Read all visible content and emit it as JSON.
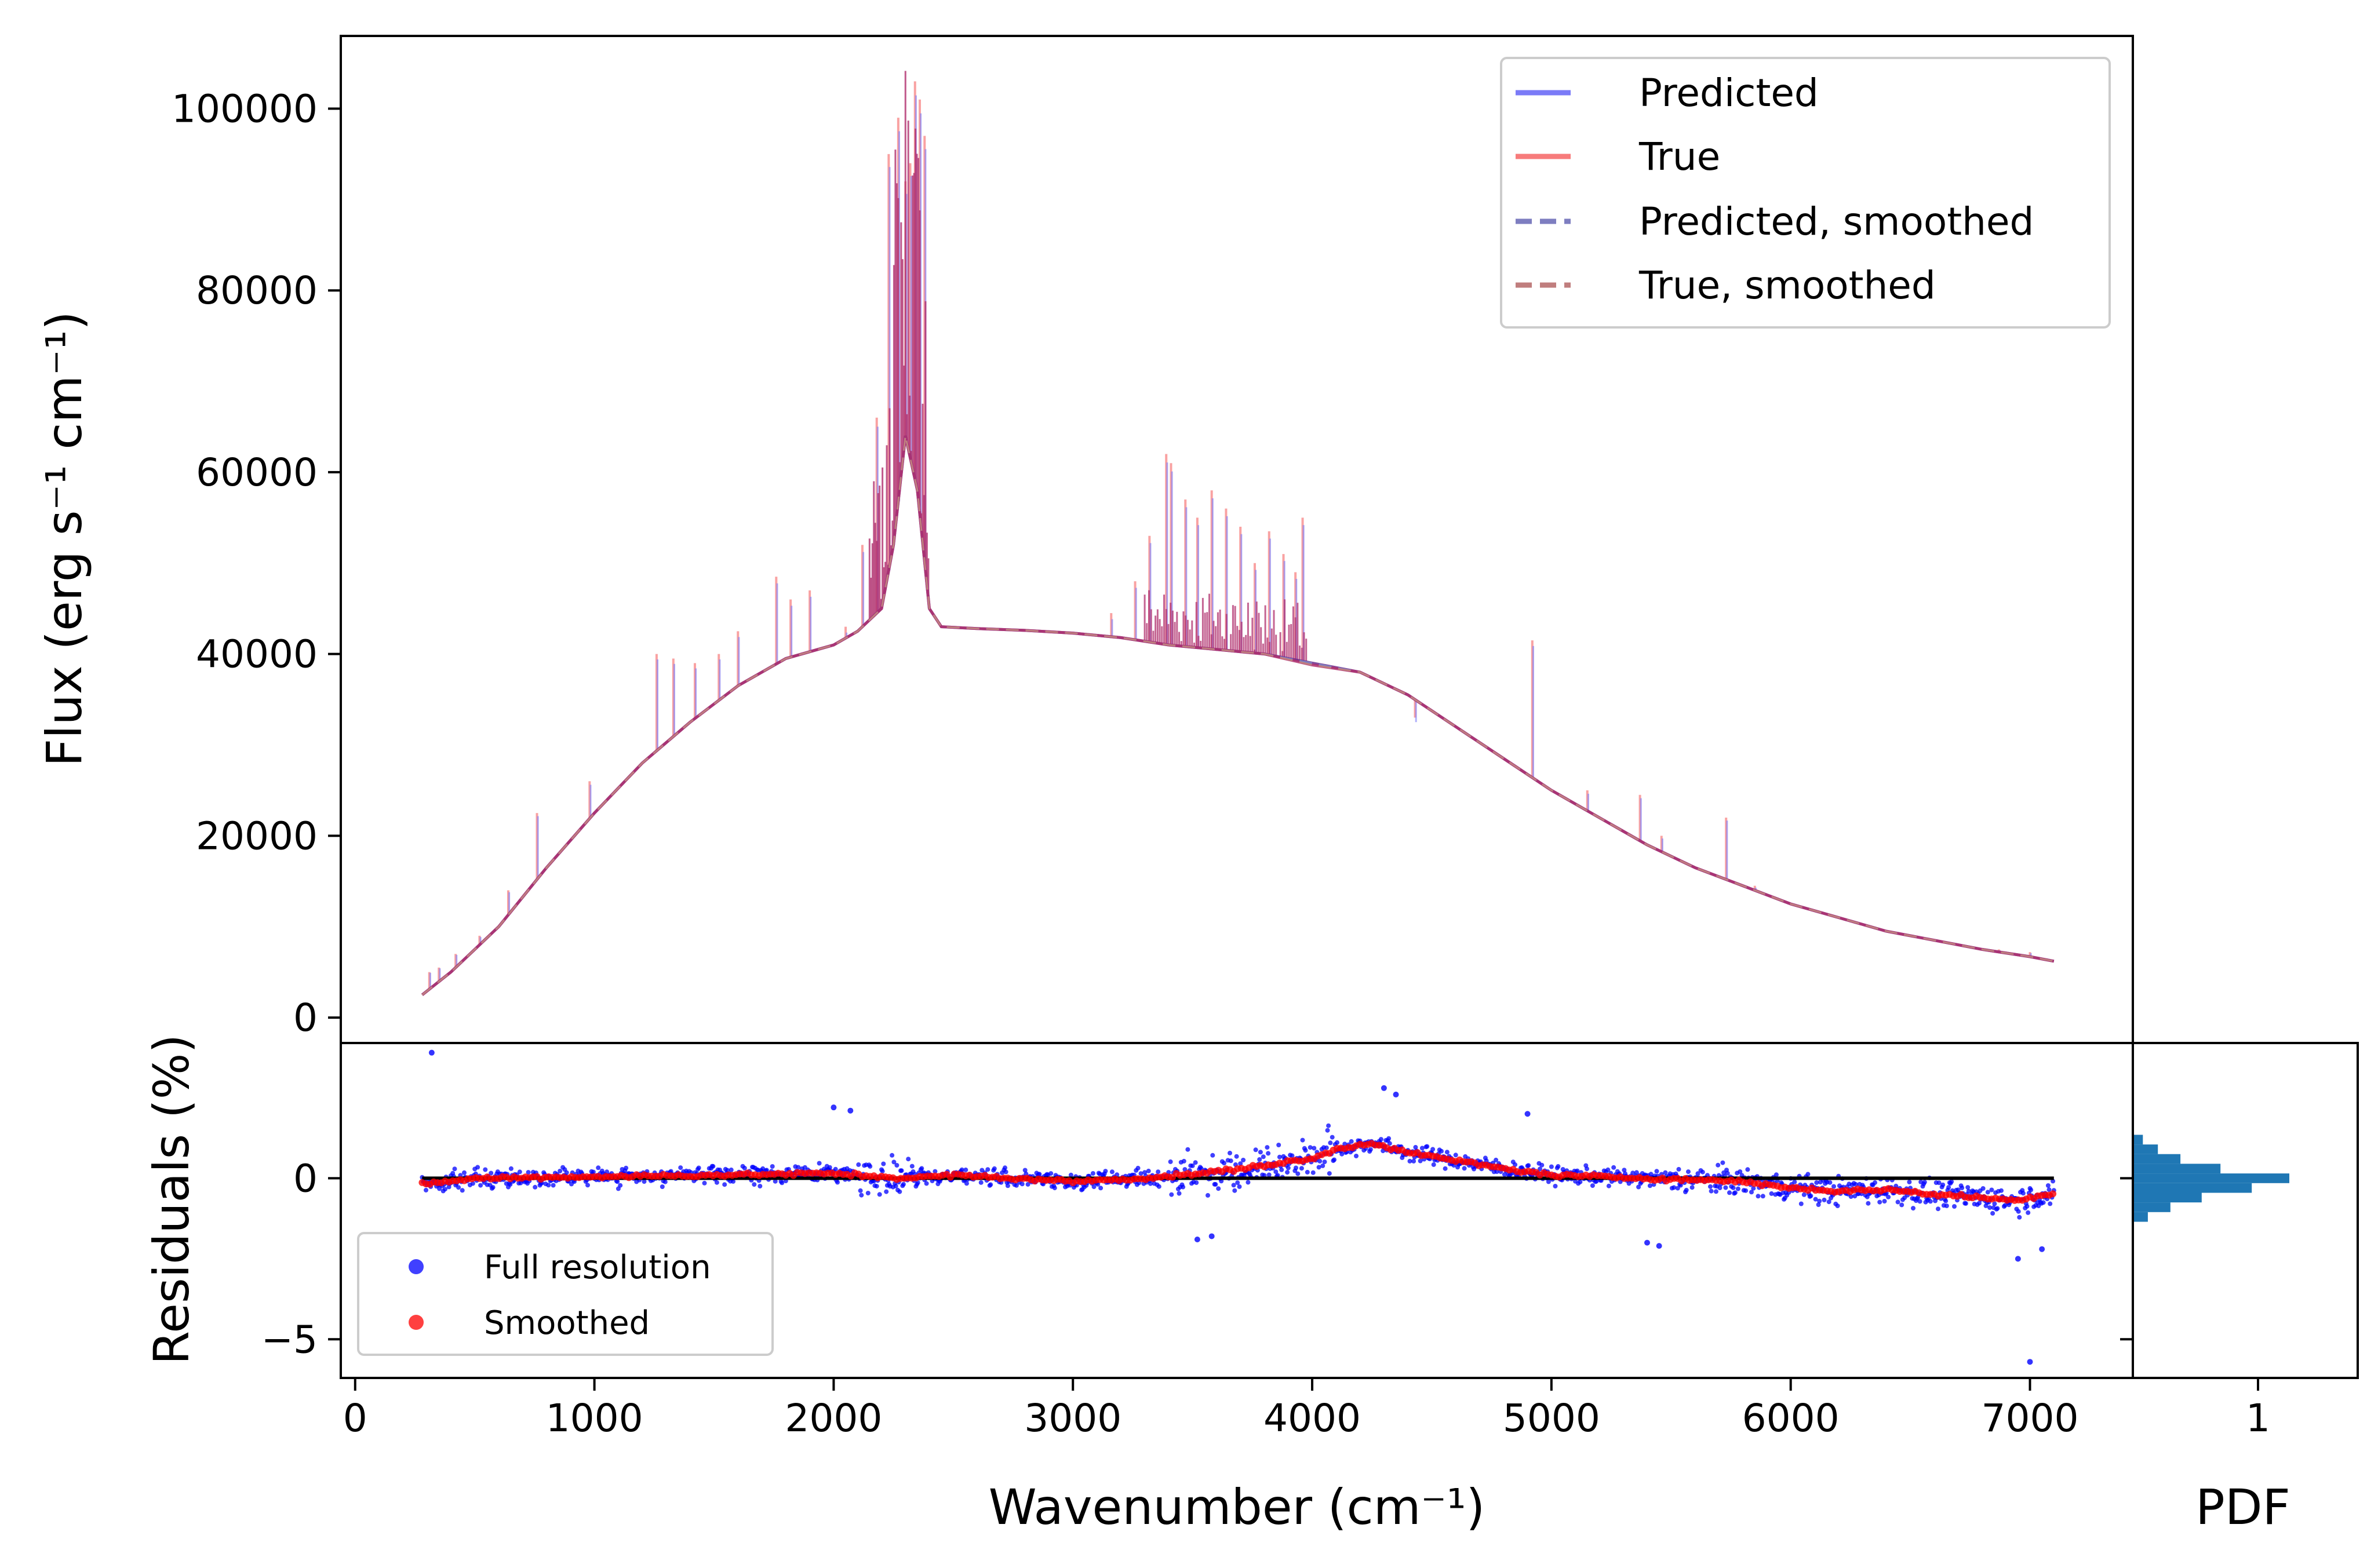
{
  "chart_data": [
    {
      "type": "line",
      "panel": "main",
      "xlabel": "",
      "ylabel": "Flux (erg s⁻¹ cm⁻¹)",
      "xlim": [
        -60,
        7430
      ],
      "ylim": [
        -2800,
        108000
      ],
      "yticks": [
        0,
        20000,
        40000,
        60000,
        80000,
        100000
      ],
      "ytick_labels": [
        "0",
        "20000",
        "40000",
        "60000",
        "80000",
        "100000"
      ],
      "legend": {
        "placement": "top-right",
        "entries": [
          {
            "label": "Predicted",
            "color": "#7b7bf7",
            "style": "solid"
          },
          {
            "label": "True",
            "color": "#f77b7b",
            "style": "solid"
          },
          {
            "label": "Predicted, smoothed",
            "color": "#7e7ec0",
            "style": "dashed"
          },
          {
            "label": "True, smoothed",
            "color": "#c07e7e",
            "style": "dashed"
          }
        ]
      },
      "x": [
        280,
        400,
        600,
        800,
        1000,
        1200,
        1400,
        1600,
        1800,
        2000,
        2100,
        2200,
        2250,
        2300,
        2350,
        2400,
        2450,
        2600,
        2800,
        3000,
        3200,
        3400,
        3600,
        3800,
        4000,
        4200,
        4400,
        4600,
        4800,
        5000,
        5200,
        5400,
        5600,
        5800,
        6000,
        6200,
        6400,
        6600,
        6800,
        7000,
        7100
      ],
      "series": [
        {
          "name": "Predicted, smoothed",
          "values": [
            2500,
            5000,
            10000,
            16500,
            22500,
            28000,
            32500,
            36500,
            39500,
            41000,
            42500,
            45000,
            52000,
            64000,
            58000,
            45000,
            43000,
            42800,
            42600,
            42300,
            41800,
            41000,
            40500,
            40000,
            39000,
            38000,
            35500,
            32000,
            28500,
            25000,
            22000,
            19000,
            16500,
            14500,
            12500,
            11000,
            9500,
            8500,
            7500,
            6700,
            6200
          ]
        },
        {
          "name": "True, smoothed",
          "values": [
            2500,
            5000,
            10000,
            16500,
            22500,
            28000,
            32500,
            36500,
            39500,
            41000,
            42500,
            45000,
            52000,
            64000,
            58000,
            45000,
            43000,
            42800,
            42600,
            42300,
            41800,
            41000,
            40500,
            40000,
            38800,
            38000,
            35500,
            32000,
            28500,
            25000,
            22000,
            19000,
            16500,
            14500,
            12500,
            11000,
            9500,
            8500,
            7500,
            6700,
            6200
          ]
        }
      ],
      "emission_spikes": {
        "x": [
          310,
          350,
          420,
          520,
          640,
          760,
          980,
          1260,
          1330,
          1420,
          1520,
          1600,
          1760,
          1820,
          1900,
          2050,
          2120,
          2180,
          2230,
          2270,
          2300,
          2320,
          2340,
          2360,
          2380,
          3160,
          3260,
          3320,
          3390,
          3410,
          3470,
          3520,
          3580,
          3640,
          3700,
          3760,
          3820,
          3880,
          3930,
          3960,
          4430,
          4920,
          5150,
          5370,
          5460,
          5730,
          5850,
          6870,
          7000
        ],
        "values": [
          5000,
          5500,
          7000,
          9000,
          14000,
          22500,
          26000,
          40000,
          39500,
          39000,
          40000,
          42500,
          48500,
          46000,
          47000,
          43000,
          52000,
          66000,
          95000,
          99000,
          92000,
          94000,
          103000,
          101000,
          97000,
          44500,
          48000,
          53000,
          62000,
          61000,
          57000,
          55000,
          58000,
          56000,
          54000,
          50000,
          53500,
          51000,
          49000,
          55000,
          33000,
          41500,
          25000,
          24500,
          20000,
          22000,
          14500,
          7500,
          7200
        ]
      }
    },
    {
      "type": "scatter",
      "panel": "residuals",
      "xlabel": "Wavenumber (cm⁻¹)",
      "ylabel": "Residuals (%)",
      "xlim": [
        -60,
        7430
      ],
      "ylim": [
        -6.2,
        4.2
      ],
      "xticks": [
        0,
        1000,
        2000,
        3000,
        4000,
        5000,
        6000,
        7000
      ],
      "xtick_labels": [
        "0",
        "1000",
        "2000",
        "3000",
        "4000",
        "5000",
        "6000",
        "7000"
      ],
      "yticks": [
        -5,
        0
      ],
      "ytick_labels": [
        "−5",
        "0"
      ],
      "legend": {
        "placement": "lower-left",
        "entries": [
          {
            "label": "Full resolution",
            "color": "#0000ff"
          },
          {
            "label": "Smoothed",
            "color": "#ff0000"
          }
        ]
      },
      "series": [
        {
          "name": "Smoothed",
          "x": [
            280,
            500,
            1000,
            1500,
            2000,
            2300,
            2500,
            3000,
            3300,
            3600,
            3800,
            4000,
            4100,
            4250,
            4400,
            4600,
            4800,
            5000,
            5200,
            5400,
            5600,
            5800,
            6000,
            6200,
            6400,
            6600,
            6800,
            6950,
            7050,
            7100
          ],
          "values": [
            -0.2,
            0.0,
            0.05,
            0.1,
            0.15,
            0.0,
            0.1,
            -0.1,
            0.0,
            0.2,
            0.4,
            0.6,
            0.9,
            1.1,
            0.8,
            0.55,
            0.3,
            0.1,
            0.05,
            0.0,
            -0.05,
            -0.1,
            -0.3,
            -0.4,
            -0.35,
            -0.5,
            -0.6,
            -0.7,
            -0.5,
            -0.5
          ]
        },
        {
          "name": "Full resolution",
          "outliers_x": [
            320,
            2000,
            2070,
            3520,
            3580,
            4300,
            4350,
            4900,
            5400,
            5450,
            6950,
            7000,
            7050
          ],
          "outliers_y": [
            3.9,
            2.2,
            2.1,
            -1.9,
            -1.8,
            2.8,
            2.6,
            2.0,
            -2.0,
            -2.1,
            -2.5,
            -5.7,
            -2.2
          ]
        }
      ],
      "reference_line": {
        "y": 0,
        "color": "#000000"
      }
    },
    {
      "type": "bar",
      "panel": "histogram",
      "orientation": "horizontal",
      "xlabel": "PDF",
      "xticks": [
        1
      ],
      "xtick_labels": [
        "1"
      ],
      "color": "#1f77b4",
      "bins": [
        -1.2,
        -0.9,
        -0.6,
        -0.3,
        0.0,
        0.3,
        0.6,
        0.9,
        1.2
      ],
      "values": [
        0.12,
        0.3,
        0.55,
        0.95,
        1.25,
        0.7,
        0.38,
        0.2,
        0.08
      ]
    }
  ]
}
